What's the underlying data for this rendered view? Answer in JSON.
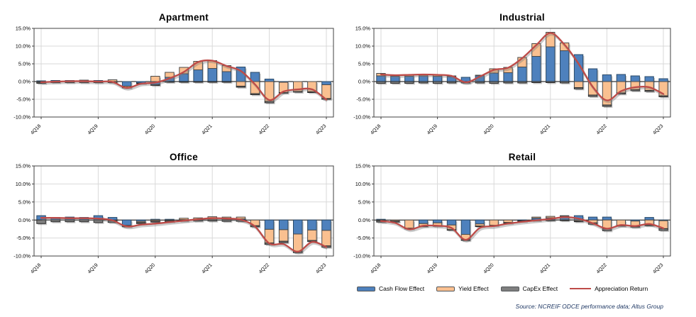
{
  "legend": [
    {
      "label": "Cash Flow Effect",
      "type": "bar",
      "color": "#4E81BD"
    },
    {
      "label": "Yield Effect",
      "type": "bar",
      "color": "#FAC090"
    },
    {
      "label": "CapEx Effect",
      "type": "bar",
      "color": "#7F7F7F"
    },
    {
      "label": "Appreciation Return",
      "type": "line",
      "color": "#BE4B48"
    }
  ],
  "source_note": "Source: NCREIF ODCE performance data; Altus Group",
  "colors": {
    "cash_flow": "#4E81BD",
    "cash_flow_border": "#2A4A68",
    "yield": "#FAC090",
    "yield_border": "#4A4A4A",
    "capex": "#7F7F7F",
    "capex_border": "#2B2B2B",
    "line": "#BE4B48",
    "grid": "#D9D9D9",
    "axis": "#404040",
    "zero_line": "#000000"
  },
  "axis": {
    "y_values": [
      15,
      10,
      5,
      0,
      -5,
      -10
    ],
    "y_ticks": [
      "15.0%",
      "10.0%",
      "5.0%",
      "0.0%",
      "-5.0%",
      "-10.0%"
    ],
    "ylim": [
      -10,
      15
    ],
    "labeled_x_indices": [
      0,
      4,
      8,
      12,
      16,
      20
    ]
  },
  "chart_data": [
    {
      "type": "bar+line",
      "stacked": true,
      "title": "Apartment",
      "categories": [
        "4Q18",
        "1Q19",
        "2Q19",
        "3Q19",
        "4Q19",
        "1Q20",
        "2Q20",
        "3Q20",
        "4Q20",
        "1Q21",
        "2Q21",
        "3Q21",
        "4Q21",
        "1Q22",
        "2Q22",
        "3Q22",
        "4Q22",
        "1Q23",
        "2Q23",
        "3Q23",
        "4Q23"
      ],
      "ylim": [
        -10,
        15
      ],
      "series": [
        {
          "name": "Cash Flow Effect",
          "values": [
            0.2,
            0.3,
            0.3,
            0.3,
            0.3,
            0.0,
            -1.3,
            -0.4,
            -0.9,
            1.2,
            2.2,
            3.3,
            3.7,
            2.8,
            4.1,
            2.6,
            0.7,
            -0.2,
            0.0,
            0.0,
            -0.9
          ]
        },
        {
          "name": "Yield Effect",
          "values": [
            -0.2,
            0.0,
            0.0,
            0.1,
            0.0,
            0.5,
            -0.3,
            0.0,
            1.5,
            1.4,
            1.8,
            2.4,
            2.2,
            1.7,
            -1.3,
            -3.4,
            -5.6,
            -2.9,
            -2.8,
            -2.9,
            -3.9
          ]
        },
        {
          "name": "CapEx Effect",
          "values": [
            -0.3,
            -0.3,
            -0.3,
            -0.3,
            -0.3,
            -0.3,
            -0.2,
            -0.2,
            -0.2,
            -0.2,
            -0.2,
            -0.2,
            -0.2,
            -0.2,
            -0.3,
            -0.3,
            -0.4,
            -0.2,
            -0.2,
            -0.2,
            -0.2
          ]
        }
      ],
      "line": {
        "name": "Appreciation Return",
        "values": [
          -0.2,
          0.0,
          0.1,
          0.1,
          0.0,
          -0.1,
          -1.8,
          -0.6,
          -0.3,
          0.9,
          2.7,
          5.5,
          5.9,
          4.4,
          3.0,
          -0.8,
          -5.2,
          -2.8,
          -2.2,
          -2.2,
          -5.1
        ]
      }
    },
    {
      "type": "bar+line",
      "stacked": true,
      "title": "Industrial",
      "categories": [
        "4Q18",
        "1Q19",
        "2Q19",
        "3Q19",
        "4Q19",
        "1Q20",
        "2Q20",
        "3Q20",
        "4Q20",
        "1Q21",
        "2Q21",
        "3Q21",
        "4Q21",
        "1Q22",
        "2Q22",
        "3Q22",
        "4Q22",
        "1Q23",
        "2Q23",
        "3Q23",
        "4Q23"
      ],
      "ylim": [
        -10,
        15
      ],
      "series": [
        {
          "name": "Cash Flow Effect",
          "values": [
            1.6,
            1.5,
            1.5,
            1.6,
            1.5,
            1.4,
            1.2,
            1.7,
            2.4,
            2.5,
            4.1,
            7.1,
            9.8,
            8.7,
            7.6,
            3.6,
            1.9,
            2.0,
            1.6,
            1.4,
            0.8
          ]
        },
        {
          "name": "Yield Effect",
          "values": [
            0.7,
            0.3,
            0.4,
            0.4,
            0.4,
            0.2,
            0.0,
            0.1,
            1.2,
            1.5,
            2.7,
            3.6,
            4.1,
            2.2,
            -1.7,
            -3.8,
            -6.6,
            -3.2,
            -2.3,
            -2.5,
            -4.0
          ]
        },
        {
          "name": "CapEx Effect",
          "values": [
            -0.5,
            -0.5,
            -0.5,
            -0.4,
            -0.5,
            -0.4,
            -0.4,
            -0.4,
            -0.5,
            -0.4,
            -0.4,
            -0.3,
            -0.3,
            -0.4,
            -0.4,
            -0.4,
            -0.4,
            -0.3,
            -0.3,
            -0.3,
            -0.3
          ]
        }
      ],
      "line": {
        "name": "Appreciation Return",
        "values": [
          2.0,
          1.8,
          1.9,
          2.0,
          1.9,
          1.6,
          -0.2,
          1.4,
          3.3,
          3.9,
          6.6,
          10.3,
          13.7,
          10.4,
          5.0,
          -1.5,
          -5.3,
          -2.7,
          -1.6,
          -1.6,
          -3.5
        ]
      }
    },
    {
      "type": "bar+line",
      "stacked": true,
      "title": "Office",
      "categories": [
        "4Q18",
        "1Q19",
        "2Q19",
        "3Q19",
        "4Q19",
        "1Q20",
        "2Q20",
        "3Q20",
        "4Q20",
        "1Q21",
        "2Q21",
        "3Q21",
        "4Q21",
        "1Q22",
        "2Q22",
        "3Q22",
        "4Q22",
        "1Q23",
        "2Q23",
        "3Q23",
        "4Q23"
      ],
      "ylim": [
        -10,
        15
      ],
      "series": [
        {
          "name": "Cash Flow Effect",
          "values": [
            1.2,
            0.7,
            0.8,
            0.7,
            1.2,
            0.7,
            -1.5,
            -0.4,
            0.2,
            0.2,
            0.1,
            0.1,
            0.1,
            0.1,
            0.3,
            0.0,
            -2.6,
            -2.7,
            -3.9,
            -2.8,
            -2.9
          ]
        },
        {
          "name": "Yield Effect",
          "values": [
            0.0,
            0.0,
            0.0,
            0.0,
            0.0,
            -0.2,
            -0.2,
            -0.3,
            -0.3,
            -0.2,
            0.4,
            0.5,
            0.8,
            0.7,
            0.5,
            -1.6,
            -3.8,
            -3.2,
            -4.8,
            -2.9,
            -4.3
          ]
        },
        {
          "name": "CapEx Effect",
          "values": [
            -1.0,
            -0.5,
            -0.5,
            -0.5,
            -0.7,
            -0.5,
            -0.2,
            -0.3,
            -0.3,
            -0.3,
            -0.3,
            -0.3,
            -0.3,
            -0.4,
            -0.4,
            -0.3,
            -0.4,
            -0.4,
            -0.4,
            -0.3,
            -0.4
          ]
        }
      ],
      "line": {
        "name": "Appreciation Return",
        "values": [
          0.6,
          0.6,
          0.5,
          0.5,
          0.4,
          -0.1,
          -1.8,
          -1.3,
          -1.0,
          -0.6,
          -0.2,
          0.2,
          0.5,
          0.4,
          0.1,
          -1.8,
          -6.5,
          -6.7,
          -8.8,
          -6.1,
          -7.5
        ]
      }
    },
    {
      "type": "bar+line",
      "stacked": true,
      "title": "Retail",
      "categories": [
        "4Q18",
        "1Q19",
        "2Q19",
        "3Q19",
        "4Q19",
        "1Q20",
        "2Q20",
        "3Q20",
        "4Q20",
        "1Q21",
        "2Q21",
        "3Q21",
        "4Q21",
        "1Q22",
        "2Q22",
        "3Q22",
        "4Q22",
        "1Q23",
        "2Q23",
        "3Q23",
        "4Q23"
      ],
      "ylim": [
        -10,
        15
      ],
      "series": [
        {
          "name": "Cash Flow Effect",
          "values": [
            0.2,
            0.0,
            0.0,
            -1.0,
            -0.8,
            -1.4,
            -4.0,
            -1.1,
            0.0,
            0.0,
            -0.2,
            0.5,
            0.6,
            1.0,
            1.2,
            0.8,
            0.8,
            0.0,
            -0.3,
            0.7,
            -0.2
          ]
        },
        {
          "name": "Yield Effect",
          "values": [
            -0.2,
            -0.3,
            -2.3,
            -0.7,
            -0.8,
            -1.3,
            -1.5,
            -0.6,
            -1.5,
            -0.7,
            0.0,
            0.3,
            0.4,
            0.2,
            -0.3,
            -0.8,
            -2.5,
            -1.5,
            -1.5,
            -1.4,
            -2.2
          ]
        },
        {
          "name": "CapEx Effect",
          "values": [
            -0.4,
            -0.3,
            -0.2,
            -0.1,
            -0.1,
            -0.1,
            -0.2,
            -0.1,
            -0.1,
            -0.2,
            -0.2,
            -0.2,
            -0.2,
            -0.2,
            -0.2,
            -0.4,
            -0.5,
            -0.2,
            -0.2,
            -0.2,
            -0.5
          ]
        }
      ],
      "line": {
        "name": "Appreciation Return",
        "values": [
          -0.3,
          -0.8,
          -2.6,
          -1.6,
          -1.6,
          -2.2,
          -5.5,
          -2.2,
          -1.7,
          -1.0,
          -0.5,
          -0.1,
          0.3,
          0.8,
          0.4,
          -0.9,
          -2.4,
          -1.4,
          -1.7,
          -1.1,
          -2.3
        ]
      }
    }
  ]
}
